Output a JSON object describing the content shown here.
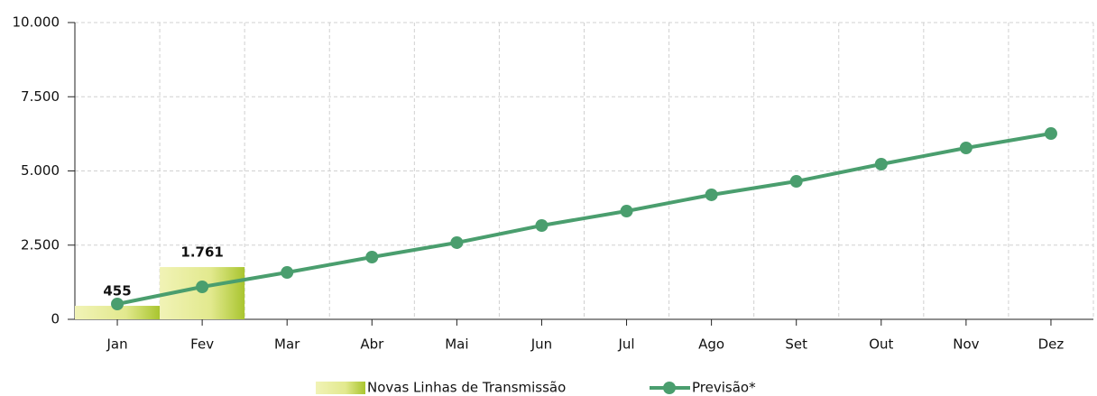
{
  "chart_data": {
    "type": "bar",
    "categories": [
      "Jan",
      "Fev",
      "Mar",
      "Abr",
      "Mai",
      "Jun",
      "Jul",
      "Ago",
      "Set",
      "Out",
      "Nov",
      "Dez"
    ],
    "series": [
      {
        "name": "Novas Linhas de Transmissão",
        "type": "bar",
        "color": "#a9c52f",
        "values": [
          455,
          1761,
          null,
          null,
          null,
          null,
          null,
          null,
          null,
          null,
          null,
          null
        ],
        "value_labels": [
          "455",
          "1.761",
          null,
          null,
          null,
          null,
          null,
          null,
          null,
          null,
          null,
          null
        ]
      },
      {
        "name": "Previsão*",
        "type": "line",
        "color": "#4a9e6e",
        "values": [
          517,
          1094,
          1580,
          2097,
          2584,
          3161,
          3647,
          4195,
          4650,
          5228,
          5775,
          6261
        ]
      }
    ],
    "ylim": [
      0,
      10000
    ],
    "yticks": [
      0,
      {
        "value": 2500,
        "label": "2.500"
      },
      {
        "value": 5000,
        "label": "5.000"
      },
      {
        "value": 7500,
        "label": "7.500"
      },
      {
        "value": 10000,
        "label": "10.000"
      }
    ],
    "grid": true
  }
}
